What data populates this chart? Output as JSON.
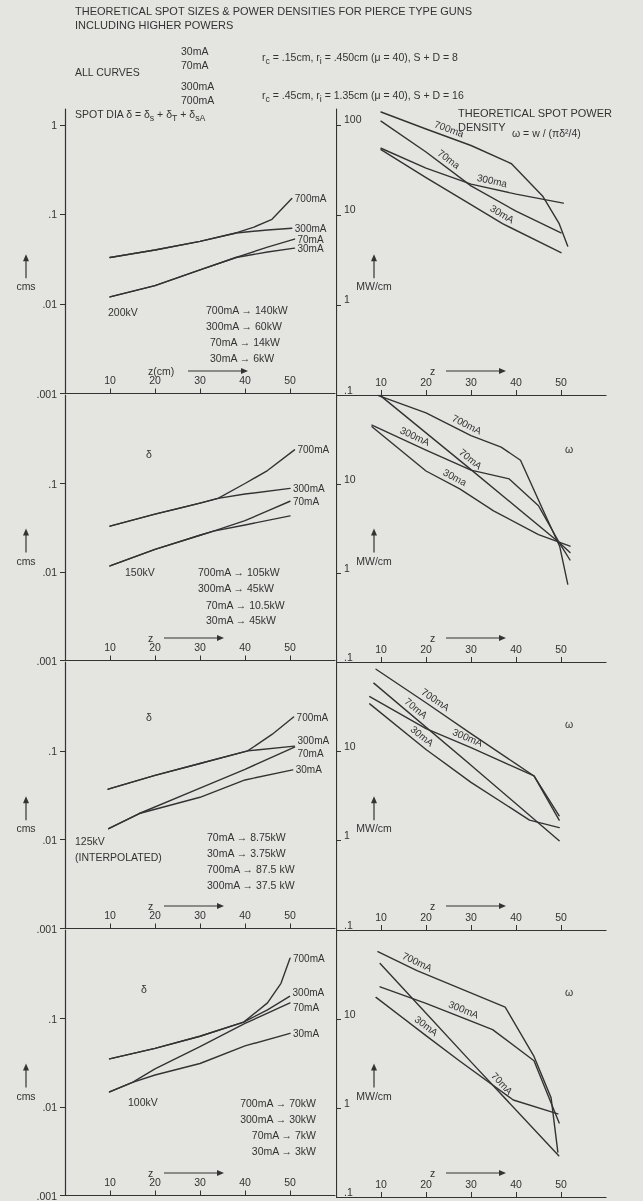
{
  "chart_data": [
    {
      "type": "line",
      "title": "THEORETICAL SPOT SIZES & POWER DENSITIES FOR PIERCE TYPE GUNS INCLUDING HIGHER POWERS",
      "xlabel": "z(cm)",
      "ylabel": "cms",
      "log": "y",
      "xlim": [
        0,
        60
      ],
      "xticks": [
        10,
        20,
        30,
        40,
        50
      ],
      "ylim": [
        0.001,
        1.5
      ],
      "yticks": [
        1,
        {
          "value": 0.1,
          "label": ".1"
        },
        {
          "value": 0.01,
          "label": ".01"
        },
        {
          "value": 0.001,
          "label": ".001"
        }
      ],
      "annotations": [
        "200kV",
        "700mA → 140kW",
        "300mA → 60kW",
        "70mA → 14kW",
        "30mA → 6kW",
        "SPOT DIA δ = δ$_{s}$ + δ$_{T}$ + δ$_{sA}$",
        "ALL CURVES",
        "30mA",
        "70mA",
        "r$_{c}$ = .15cm, r$_{i}$ = .450cm (μ = 40), S + D = 8",
        "300mA",
        "700mA",
        "r$_{c}$ = .45cm, r$_{i}$ = 1.35cm (μ = 40), S + D = 16"
      ],
      "series": [
        {
          "name": "700mA",
          "color": "#333333",
          "x": [
            10,
            20,
            30,
            38,
            42,
            46,
            50.4
          ],
          "values": [
            0.033,
            0.04,
            0.05,
            0.062,
            0.072,
            0.088,
            0.15
          ]
        },
        {
          "name": "300mA",
          "color": "#333333",
          "x": [
            10,
            20,
            30,
            38,
            45,
            50.4
          ],
          "values": [
            0.033,
            0.04,
            0.05,
            0.062,
            0.067,
            0.07
          ]
        },
        {
          "name": "70mA",
          "color": "#333333",
          "x": [
            10,
            20,
            30,
            38,
            45,
            51
          ],
          "values": [
            0.012,
            0.016,
            0.024,
            0.033,
            0.043,
            0.053
          ]
        },
        {
          "name": "30mA",
          "color": "#333333",
          "x": [
            10,
            20,
            30,
            38,
            45,
            51
          ],
          "values": [
            0.012,
            0.016,
            0.024,
            0.033,
            0.038,
            0.042
          ]
        }
      ]
    },
    {
      "type": "line",
      "title": "THEORETICAL SPOT POWER DENSITY",
      "xlabel": "z",
      "ylabel": "MW/cm",
      "log": "y",
      "xlim": [
        0,
        60
      ],
      "xticks": [
        10,
        20,
        30,
        40,
        50
      ],
      "ylim": [
        0.1,
        150
      ],
      "yticks": [
        100,
        10,
        1,
        {
          "value": 0.1,
          "label": ".1"
        }
      ],
      "annotations": [
        "ω = w / (πδ²/4)"
      ],
      "series": [
        {
          "name": "700ma",
          "color": "#333333",
          "x": [
            10,
            20,
            30,
            39,
            46,
            49.6,
            51.5
          ],
          "values": [
            139,
            90,
            59,
            37,
            16,
            8,
            4.5
          ]
        },
        {
          "name": "70ma",
          "color": "#333333",
          "x": [
            10,
            20,
            30,
            40,
            50
          ],
          "values": [
            110,
            50,
            21,
            11,
            6.3
          ]
        },
        {
          "name": "300ma",
          "color": "#333333",
          "x": [
            10,
            20,
            30,
            40,
            50.5
          ],
          "values": [
            55,
            33,
            22,
            17,
            13.5
          ]
        },
        {
          "name": "30mA",
          "color": "#333333",
          "x": [
            10,
            20,
            30,
            37,
            50
          ],
          "values": [
            53,
            26,
            13,
            8,
            3.8
          ]
        }
      ]
    },
    {
      "type": "line",
      "xlabel": "z",
      "ylabel": "cms",
      "log": "y",
      "xlim": [
        0,
        60
      ],
      "xticks": [
        10,
        20,
        30,
        40,
        50
      ],
      "ylim": [
        0.001,
        1
      ],
      "yticks": [
        {
          "value": 0.1,
          "label": ".1"
        },
        {
          "value": 0.01,
          "label": ".01"
        },
        {
          "value": 0.001,
          "label": ".001"
        }
      ],
      "annotations": [
        "δ",
        "150kV",
        "700mA → 105kW",
        "300mA → 45kW",
        "70mA → 10.5kW",
        "30mA → 45kW"
      ],
      "series": [
        {
          "name": "700mA",
          "color": "#333333",
          "x": [
            10,
            20,
            30,
            34,
            40,
            45,
            51
          ],
          "values": [
            0.033,
            0.045,
            0.06,
            0.068,
            0.1,
            0.14,
            0.24
          ]
        },
        {
          "name": "300mA",
          "color": "#333333",
          "x": [
            10,
            20,
            30,
            34,
            40,
            50
          ],
          "values": [
            0.033,
            0.045,
            0.06,
            0.068,
            0.076,
            0.088
          ]
        },
        {
          "name": "70mA",
          "color": "#333333",
          "x": [
            10,
            20,
            30,
            33,
            40,
            50
          ],
          "values": [
            0.0117,
            0.018,
            0.026,
            0.029,
            0.038,
            0.063
          ]
        },
        {
          "color": "#333333",
          "x": [
            10,
            20,
            30,
            33,
            40,
            50
          ],
          "values": [
            0.0117,
            0.018,
            0.026,
            0.029,
            0.034,
            0.043
          ]
        }
      ]
    },
    {
      "type": "line",
      "xlabel": "z",
      "ylabel": "MW/cm",
      "log": "y",
      "xlim": [
        0,
        60
      ],
      "xticks": [
        10,
        20,
        30,
        40,
        50
      ],
      "ylim": [
        0.1,
        100
      ],
      "yticks": [
        10,
        1,
        {
          "value": 0.1,
          "label": ".1"
        }
      ],
      "annotations": [
        "ω"
      ],
      "series": [
        {
          "name": "700mA",
          "color": "#333333",
          "x": [
            9.3,
            20,
            30,
            36.7,
            41,
            46,
            49.7,
            51.5
          ],
          "values": [
            99,
            63,
            35,
            26,
            18.5,
            5.1,
            2.0,
            0.75
          ]
        },
        {
          "name": "70mA",
          "color": "#333333",
          "x": [
            9.8,
            30,
            49.6,
            52
          ],
          "values": [
            99,
            14.5,
            2.2,
            1.4
          ]
        },
        {
          "name": "300mA",
          "color": "#333333",
          "x": [
            8,
            20,
            30,
            38.5,
            45,
            49.6,
            52
          ],
          "values": [
            46,
            24,
            14.3,
            11.4,
            5.7,
            2.2,
            1.7
          ]
        },
        {
          "name": "30ma",
          "color": "#333333",
          "x": [
            8,
            20,
            27.5,
            35,
            45,
            52
          ],
          "values": [
            44,
            14,
            8.8,
            5,
            2.7,
            2.0
          ]
        }
      ]
    },
    {
      "type": "line",
      "xlabel": "z",
      "ylabel": "cms",
      "log": "y",
      "xlim": [
        0,
        60
      ],
      "xticks": [
        10,
        20,
        30,
        40,
        50
      ],
      "ylim": [
        0.001,
        1
      ],
      "yticks": [
        {
          "value": 0.1,
          "label": ".1"
        },
        {
          "value": 0.01,
          "label": ".01"
        },
        {
          "value": 0.001,
          "label": ".001"
        }
      ],
      "annotations": [
        "δ",
        "125kV",
        "(INTERPOLATED)",
        "70mA → 8.75kW",
        "30mA → 3.75kW",
        "700mA → 87.5 kW",
        "300mA → 37.5 kW"
      ],
      "series": [
        {
          "name": "700mA",
          "color": "#333333",
          "x": [
            9.6,
            20,
            30,
            40.6,
            46,
            50.8
          ],
          "values": [
            0.037,
            0.053,
            0.072,
            0.1,
            0.153,
            0.24
          ]
        },
        {
          "name": "300mA",
          "color": "#333333",
          "x": [
            9.6,
            20,
            30,
            40.6,
            51
          ],
          "values": [
            0.037,
            0.053,
            0.072,
            0.1,
            0.113
          ]
        },
        {
          "name": "70mA",
          "color": "#333333",
          "x": [
            9.7,
            16.5,
            30,
            40,
            51
          ],
          "values": [
            0.0133,
            0.0197,
            0.038,
            0.062,
            0.11
          ]
        },
        {
          "name": "30mA",
          "color": "#333333",
          "x": [
            9.7,
            16.5,
            30,
            40,
            50.6
          ],
          "values": [
            0.0133,
            0.0197,
            0.03,
            0.047,
            0.061
          ]
        }
      ]
    },
    {
      "type": "line",
      "xlabel": "z",
      "ylabel": "MW/cm",
      "log": "y",
      "xlim": [
        0,
        60
      ],
      "xticks": [
        10,
        20,
        30,
        40,
        50
      ],
      "ylim": [
        0.1,
        100
      ],
      "yticks": [
        10,
        1,
        {
          "value": 0.1,
          "label": ".1"
        }
      ],
      "annotations": [
        "ω"
      ],
      "series": [
        {
          "name": "700mA",
          "color": "#333333",
          "x": [
            8.9,
            20,
            30,
            44,
            49.6
          ],
          "values": [
            83,
            35,
            15.8,
            5.3,
            1.7
          ]
        },
        {
          "name": "70mA",
          "color": "#333333",
          "x": [
            8.4,
            30,
            49.6
          ],
          "values": [
            58,
            7.0,
            1.0
          ]
        },
        {
          "name": "300mA",
          "color": "#333333",
          "x": [
            7.5,
            20,
            30,
            44,
            49.6
          ],
          "values": [
            41,
            18,
            11,
            5.3,
            1.9
          ]
        },
        {
          "name": "30mA",
          "color": "#333333",
          "x": [
            7.5,
            20,
            30,
            43,
            49.6
          ],
          "values": [
            34,
            10.5,
            4.5,
            1.7,
            1.4
          ]
        }
      ]
    },
    {
      "type": "line",
      "xlabel": "z",
      "ylabel": "cms",
      "log": "y",
      "xlim": [
        0,
        60
      ],
      "xticks": [
        10,
        20,
        30,
        40,
        50
      ],
      "ylim": [
        0.001,
        1
      ],
      "yticks": [
        {
          "value": 0.1,
          "label": ".1"
        },
        {
          "value": 0.01,
          "label": ".01"
        },
        {
          "value": 0.001,
          "label": ".001"
        }
      ],
      "annotations": [
        "δ",
        "100kV",
        "700mA → 70kW",
        "300mA → 30kW",
        "70mA → 7kW",
        "30mA → 3kW"
      ],
      "series": [
        {
          "name": "700mA",
          "color": "#333333",
          "x": [
            9.9,
            20,
            30,
            39.7,
            45,
            48,
            50
          ],
          "values": [
            0.035,
            0.046,
            0.063,
            0.091,
            0.15,
            0.25,
            0.48
          ]
        },
        {
          "name": "300mA",
          "color": "#333333",
          "x": [
            9.9,
            20,
            30,
            39.7,
            45,
            49.9
          ],
          "values": [
            0.035,
            0.046,
            0.063,
            0.091,
            0.125,
            0.178
          ]
        },
        {
          "name": "70mA",
          "color": "#333333",
          "x": [
            9.9,
            15,
            20,
            30,
            40,
            50
          ],
          "values": [
            0.0148,
            0.019,
            0.027,
            0.048,
            0.088,
            0.15
          ]
        },
        {
          "name": "30mA",
          "color": "#333333",
          "x": [
            9.9,
            15,
            20,
            30,
            40,
            50
          ],
          "values": [
            0.0148,
            0.019,
            0.023,
            0.031,
            0.049,
            0.068
          ]
        }
      ]
    },
    {
      "type": "line",
      "xlabel": "z",
      "ylabel": "MW/cm",
      "log": "y",
      "xlim": [
        0,
        60
      ],
      "xticks": [
        10,
        20,
        30,
        40,
        50
      ],
      "ylim": [
        0.1,
        100
      ],
      "yticks": [
        10,
        1,
        {
          "value": 0.1,
          "label": ".1"
        }
      ],
      "annotations": [
        "ω"
      ],
      "series": [
        {
          "name": "700mA",
          "color": "#333333",
          "x": [
            9.3,
            18,
            37.6,
            44,
            47.8,
            49.3
          ],
          "values": [
            57,
            35,
            13.6,
            3.8,
            1.3,
            0.32
          ]
        },
        {
          "name": "70mA",
          "color": "#333333",
          "x": [
            9.8,
            30,
            49.5
          ],
          "values": [
            42,
            3.3,
            0.29
          ]
        },
        {
          "name": "300mA",
          "color": "#333333",
          "x": [
            9.8,
            20,
            34.8,
            44,
            49.6
          ],
          "values": [
            23,
            15,
            7.6,
            3.4,
            0.68
          ]
        },
        {
          "name": "30mA",
          "color": "#333333",
          "x": [
            8.9,
            20,
            27.4,
            39.4,
            49.3
          ],
          "values": [
            17.5,
            6.5,
            3.4,
            1.23,
            0.86
          ]
        }
      ]
    }
  ]
}
